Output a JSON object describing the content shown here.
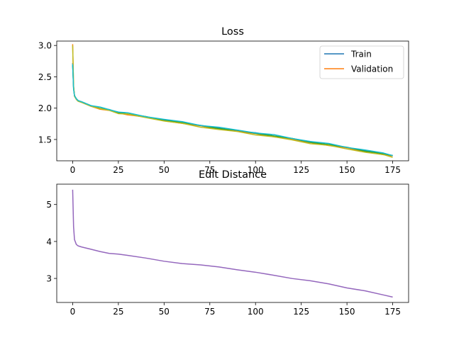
{
  "figure": {
    "background": "#ffffff"
  },
  "chart_data": [
    {
      "type": "line",
      "title": "Loss",
      "xlabel": "",
      "ylabel": "",
      "xlim": [
        -8.7,
        183.7
      ],
      "ylim": [
        1.16,
        3.07
      ],
      "xticks": [
        0,
        25,
        50,
        75,
        100,
        125,
        150,
        175
      ],
      "yticks": [
        1.5,
        2.0,
        2.5,
        3.0
      ],
      "ytick_labels": [
        "1.5",
        "2.0",
        "2.5",
        "3.0"
      ],
      "grid": false,
      "legend": {
        "placement": "upper-right",
        "entries": [
          "Train",
          "Validation"
        ]
      },
      "legend_colors": [
        "#1f77b4",
        "#ff7f0e"
      ],
      "series": [
        {
          "name": "Train",
          "color": "#1f77b4",
          "x": [
            0,
            0.5,
            1,
            2,
            3,
            5,
            10,
            15,
            20,
            25,
            30,
            40,
            50,
            60,
            70,
            80,
            90,
            100,
            110,
            120,
            130,
            140,
            150,
            160,
            170,
            175
          ],
          "y": [
            2.72,
            2.32,
            2.2,
            2.15,
            2.12,
            2.1,
            2.04,
            2.0,
            1.97,
            1.93,
            1.91,
            1.86,
            1.81,
            1.77,
            1.72,
            1.68,
            1.64,
            1.6,
            1.56,
            1.51,
            1.46,
            1.42,
            1.37,
            1.32,
            1.27,
            1.24
          ]
        },
        {
          "name": "Validation",
          "color": "#ff7f0e",
          "x": [
            0,
            0.5,
            1,
            2,
            3,
            5,
            10,
            15,
            20,
            25,
            30,
            40,
            50,
            60,
            70,
            80,
            90,
            100,
            110,
            120,
            130,
            140,
            150,
            160,
            170,
            175
          ],
          "y": [
            3.02,
            2.35,
            2.19,
            2.14,
            2.11,
            2.09,
            2.03,
            1.99,
            1.96,
            1.92,
            1.9,
            1.85,
            1.8,
            1.76,
            1.71,
            1.67,
            1.63,
            1.59,
            1.55,
            1.5,
            1.45,
            1.41,
            1.36,
            1.31,
            1.26,
            1.23
          ]
        },
        {
          "color": "#2ca02c",
          "x": [
            0,
            0.5,
            1,
            2,
            3,
            5,
            10,
            15,
            20,
            25,
            30,
            40,
            50,
            60,
            70,
            80,
            90,
            100,
            110,
            120,
            130,
            140,
            150,
            160,
            170,
            175
          ],
          "y": [
            2.68,
            2.33,
            2.2,
            2.15,
            2.12,
            2.1,
            2.04,
            2.0,
            1.97,
            1.93,
            1.91,
            1.86,
            1.81,
            1.77,
            1.72,
            1.68,
            1.64,
            1.6,
            1.56,
            1.51,
            1.46,
            1.42,
            1.37,
            1.32,
            1.27,
            1.24
          ]
        },
        {
          "color": "#bcbd22",
          "x": [
            0,
            0.5,
            1,
            2,
            3,
            5,
            10,
            15,
            20,
            25,
            30,
            40,
            50,
            60,
            70,
            80,
            90,
            100,
            110,
            120,
            130,
            140,
            150,
            160,
            170,
            175
          ],
          "y": [
            3.0,
            2.36,
            2.19,
            2.14,
            2.11,
            2.09,
            2.03,
            1.99,
            1.96,
            1.92,
            1.9,
            1.85,
            1.8,
            1.75,
            1.7,
            1.66,
            1.62,
            1.58,
            1.54,
            1.49,
            1.44,
            1.4,
            1.35,
            1.3,
            1.25,
            1.22
          ]
        },
        {
          "color": "#17becf",
          "x": [
            0,
            0.5,
            1,
            2,
            3,
            5,
            10,
            15,
            20,
            25,
            30,
            40,
            50,
            60,
            70,
            80,
            90,
            100,
            110,
            120,
            130,
            140,
            150,
            160,
            170,
            175
          ],
          "y": [
            2.7,
            2.3,
            2.2,
            2.15,
            2.12,
            2.1,
            2.04,
            2.01,
            1.98,
            1.94,
            1.92,
            1.87,
            1.82,
            1.78,
            1.73,
            1.69,
            1.65,
            1.61,
            1.57,
            1.52,
            1.47,
            1.43,
            1.38,
            1.33,
            1.28,
            1.25
          ]
        }
      ]
    },
    {
      "type": "line",
      "title": "Edit Distance",
      "xlabel": "",
      "ylabel": "",
      "xlim": [
        -8.7,
        183.7
      ],
      "ylim": [
        2.35,
        5.55
      ],
      "xticks": [
        0,
        25,
        50,
        75,
        100,
        125,
        150,
        175
      ],
      "yticks": [
        3,
        4,
        5
      ],
      "ytick_labels": [
        "3",
        "4",
        "5"
      ],
      "grid": false,
      "series": [
        {
          "color": "#9467bd",
          "x": [
            0,
            0.5,
            1,
            2,
            3,
            5,
            10,
            15,
            20,
            25,
            30,
            40,
            50,
            60,
            70,
            80,
            90,
            100,
            110,
            120,
            130,
            140,
            150,
            160,
            170,
            175
          ],
          "y": [
            5.4,
            4.4,
            4.05,
            3.92,
            3.88,
            3.85,
            3.79,
            3.73,
            3.68,
            3.65,
            3.63,
            3.55,
            3.46,
            3.41,
            3.36,
            3.31,
            3.24,
            3.16,
            3.09,
            3.0,
            2.93,
            2.86,
            2.74,
            2.66,
            2.56,
            2.49
          ]
        }
      ]
    }
  ]
}
